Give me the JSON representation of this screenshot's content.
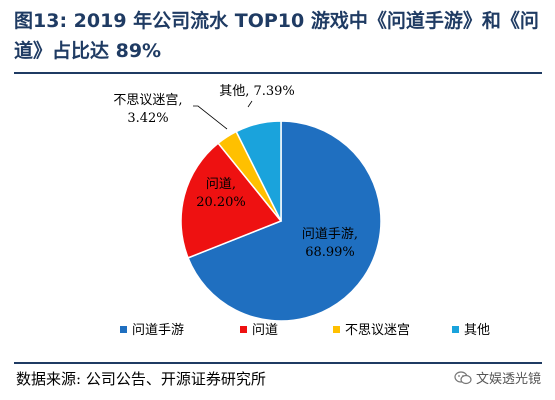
{
  "header": {
    "title": "图13: 2019 年公司流水 TOP10 游戏中《问道手游》和《问道》占比达 89%"
  },
  "chart_data": {
    "type": "pie",
    "categories": [
      "问道手游",
      "问道",
      "不思议迷宫",
      "其他"
    ],
    "values": [
      68.99,
      20.2,
      3.42,
      7.39
    ],
    "labels": [
      [
        "问道手游,",
        "68.99%"
      ],
      [
        "问道,",
        "20.20%"
      ],
      [
        "不思议迷宫,",
        "3.42%"
      ],
      [
        "其他, 7.39%"
      ]
    ],
    "colors": [
      "#1f6fc0",
      "#ee1111",
      "#ffc000",
      "#1aa3dc"
    ],
    "legend": "bottom"
  },
  "footer": {
    "source": "数据来源: 公司公告、开源证券研究所",
    "watermark": "文娱透光镜",
    "watermark_icon": "wechat-icon"
  }
}
